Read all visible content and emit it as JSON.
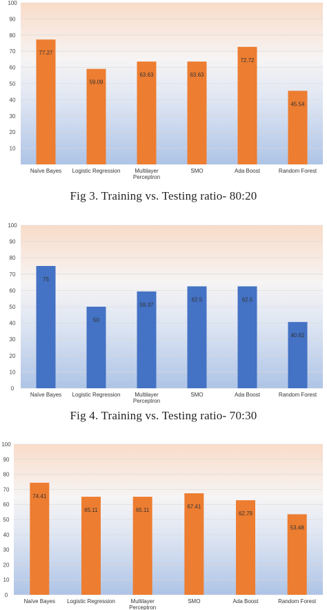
{
  "chart_data": [
    {
      "type": "bar",
      "categories": [
        "Naïve Bayes",
        "Logistic Regression",
        "Multilayer Perceptron",
        "SMO",
        "Ada Boost",
        "Random Forest"
      ],
      "values": [
        77.27,
        59.09,
        63.63,
        63.63,
        72.72,
        45.54
      ],
      "value_labels": [
        "77.27",
        "59.09",
        "63.63",
        "63.63",
        "72.72",
        "45.54"
      ],
      "ylim": [
        0,
        100
      ],
      "yticks": [
        "10",
        "20",
        "30",
        "40",
        "50",
        "60",
        "70",
        "80",
        "90",
        "100"
      ],
      "bar_color": "#ED7D31",
      "grid": true,
      "caption": "Fig 3. Training vs. Testing ratio- 80:20"
    },
    {
      "type": "bar",
      "categories": [
        "Naïve Bayes",
        "Logistic Regression",
        "Multilayer Perceptron",
        "SMO",
        "Ada Boost",
        "Random Forest"
      ],
      "values": [
        75,
        50,
        59.37,
        62.5,
        62.5,
        40.62
      ],
      "value_labels": [
        "75",
        "50",
        "59.37",
        "62.5",
        "62.5",
        "40.62"
      ],
      "ylim": [
        0,
        100
      ],
      "yticks": [
        "0",
        "10",
        "20",
        "30",
        "40",
        "50",
        "60",
        "70",
        "80",
        "90",
        "100"
      ],
      "bar_color": "#4472C4",
      "grid": true,
      "caption": "Fig 4. Training vs. Testing ratio- 70:30"
    },
    {
      "type": "bar",
      "categories": [
        "Naïve Bayes",
        "Logistic Regression",
        "Multilayer Perceptron",
        "SMO",
        "Ada Boost",
        "Random Forest"
      ],
      "values": [
        74.41,
        65.11,
        65.11,
        67.41,
        62.79,
        53.48
      ],
      "value_labels": [
        "74.41",
        "65.11",
        "65.11",
        "67.41",
        "62.79",
        "53.48"
      ],
      "ylim": [
        0,
        100
      ],
      "yticks": [
        "0",
        "10",
        "20",
        "30",
        "40",
        "50",
        "60",
        "70",
        "80",
        "90",
        "100"
      ],
      "bar_color": "#ED7D31",
      "grid": true,
      "caption": ""
    }
  ]
}
